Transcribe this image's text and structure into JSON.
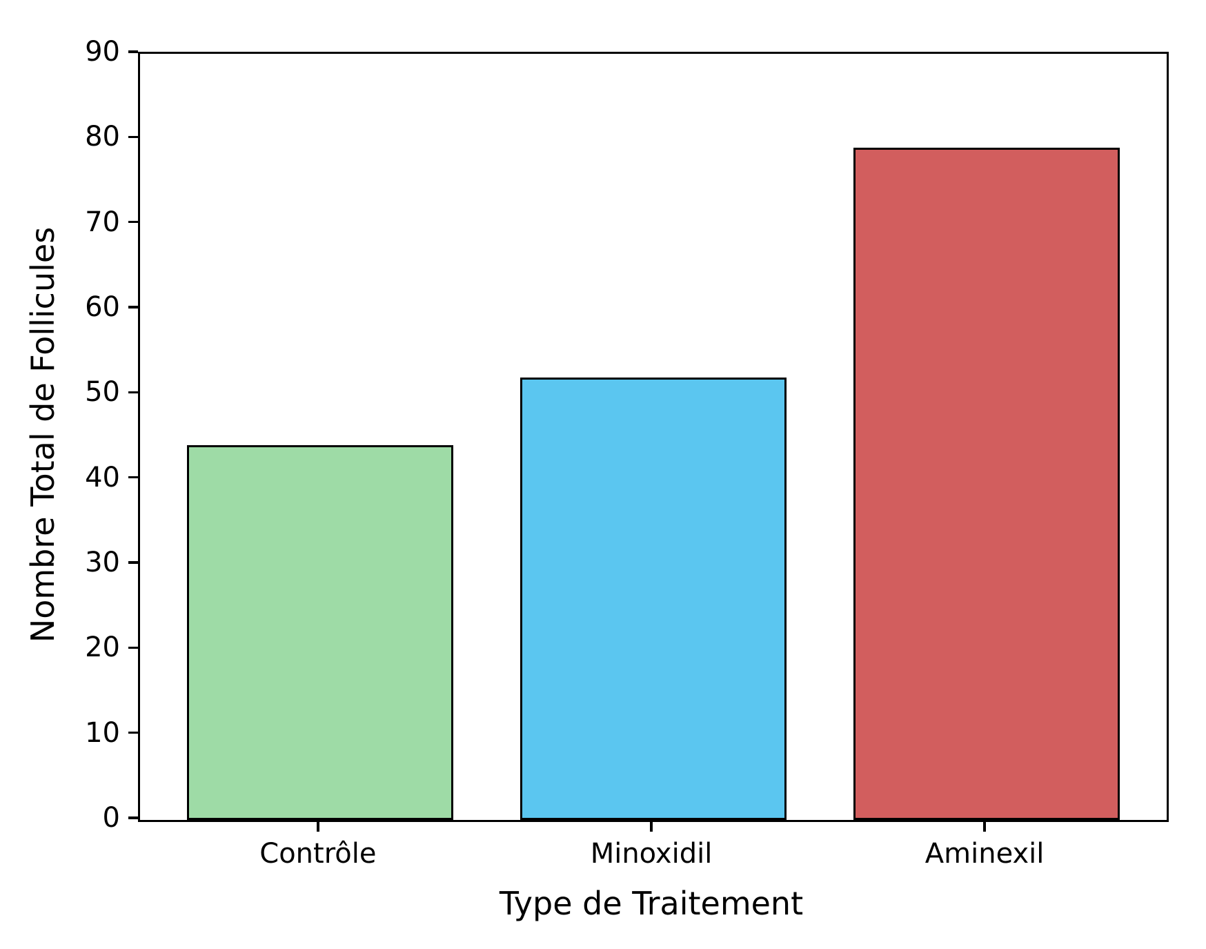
{
  "chart_data": {
    "type": "bar",
    "title": "",
    "categories": [
      "Contrôle",
      "Minoxidil",
      "Aminexil"
    ],
    "values": [
      44,
      52,
      79
    ],
    "bar_colors": [
      "#9edba6",
      "#5bc6f0",
      "#d25e5e"
    ],
    "bar_edge_color": "#000000",
    "xlabel": "Type de Traitement",
    "ylabel": "Nombre Total de Follicules",
    "ylim": [
      0,
      90
    ],
    "ytick_step": 10,
    "yticks": [
      0,
      10,
      20,
      30,
      40,
      50,
      60,
      70,
      80,
      90
    ],
    "bar_width_fraction": 0.8,
    "grid": "off",
    "legend": "none"
  }
}
